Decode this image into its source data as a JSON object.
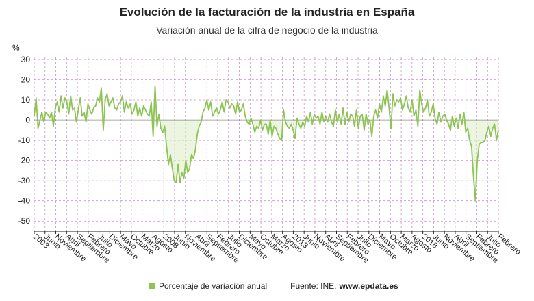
{
  "colors": {
    "series": "#8dc455",
    "fill": "#ddeec9",
    "grid": "#c98fc9",
    "zero": "#222222",
    "axis": "#222222"
  },
  "footer": {
    "legend_label": "Porcentaje de variación anual",
    "source_prefix": "Fuente: INE,",
    "source_site": "www.epdata.es"
  },
  "chart_data": {
    "type": "line",
    "title": "Evolución de la facturación de la industria en España",
    "subtitle": "Variación anual de la cifra de negocio de la industria",
    "ylabel": "%",
    "xlabel": "",
    "ylim": [
      -55,
      31
    ],
    "yticks": [
      30,
      20,
      10,
      0,
      -10,
      -20,
      -30,
      -40,
      -50
    ],
    "grid": true,
    "legend": "bottom",
    "x_tick_labels": [
      "2003",
      "Junio",
      "Noviembre",
      "Abril",
      "Septiembre",
      "Febrero",
      "Julio",
      "Diciembre",
      "Mayo",
      "Octubre",
      "Marzo",
      "Agosto",
      "2008",
      "Junio",
      "Noviembre",
      "Abril",
      "Septiembre",
      "Febrero",
      "Julio",
      "Diciembre",
      "Mayo",
      "Octubre",
      "Marzo",
      "Agosto",
      "2013",
      "Junio",
      "Noviembre",
      "Abril",
      "Septiembre",
      "Febrero",
      "Julio",
      "Diciembre",
      "Mayo",
      "Octubre",
      "Marzo",
      "Agosto",
      "2018",
      "Junio",
      "Noviembre",
      "Abril",
      "Septiembre",
      "Febrero",
      "Julio",
      "Febrero"
    ],
    "series": [
      {
        "name": "Porcentaje de variación anual",
        "values": [
          2,
          11,
          -4,
          0,
          4,
          -1,
          4,
          3,
          1,
          4,
          -3,
          6,
          9,
          4,
          12,
          6,
          11,
          9,
          3,
          12,
          5,
          6,
          -1,
          5,
          11,
          2,
          4,
          -1,
          8,
          5,
          3,
          6,
          7,
          11,
          9,
          16,
          -5,
          10,
          13,
          7,
          9,
          11,
          6,
          5,
          8,
          9,
          12,
          4,
          9,
          6,
          8,
          3,
          5,
          9,
          2,
          6,
          2,
          7,
          5,
          3,
          2,
          9,
          -8,
          17,
          -3,
          3,
          -4,
          -6,
          -3,
          -13,
          -22,
          -17,
          -24,
          -30,
          -31,
          -22,
          -31,
          -26,
          -29,
          -20,
          -26,
          -24,
          -17,
          -19,
          -15,
          -7,
          -3,
          -1,
          4,
          6,
          10,
          5,
          9,
          2,
          4,
          6,
          3,
          5,
          9,
          4,
          10,
          9,
          6,
          8,
          7,
          3,
          9,
          4,
          5,
          8,
          2,
          -1,
          -2,
          1,
          -2,
          -6,
          -3,
          -4,
          0,
          -5,
          -2,
          -2,
          -7,
          0,
          -8,
          -3,
          -4,
          -7,
          -9,
          -10,
          5,
          -1,
          -3,
          -4,
          -2,
          -5,
          -9,
          1,
          -2,
          -4,
          -1,
          -3,
          2,
          -1,
          4,
          -2,
          3,
          1,
          2,
          -2,
          4,
          -1,
          2,
          -1,
          3,
          -1,
          -3,
          5,
          -1,
          3,
          -2,
          6,
          -2,
          4,
          -1,
          3,
          2,
          -3,
          5,
          -4,
          2,
          3,
          -5,
          3,
          -2,
          0,
          -8,
          2,
          5,
          1,
          8,
          4,
          12,
          7,
          15,
          6,
          -4,
          13,
          7,
          10,
          9,
          11,
          5,
          8,
          12,
          6,
          4,
          10,
          2,
          5,
          -3,
          15,
          8,
          4,
          6,
          10,
          2,
          4,
          8,
          1,
          -2,
          4,
          -1,
          2,
          3,
          0,
          -2,
          -5,
          2,
          -3,
          1,
          -4,
          3,
          -2,
          4,
          -6,
          -4,
          -10,
          -13,
          -28,
          -40,
          -20,
          -12,
          -11,
          -11,
          -10,
          -6,
          -3,
          -8,
          -4,
          -2,
          -10,
          -5
        ]
      }
    ]
  }
}
